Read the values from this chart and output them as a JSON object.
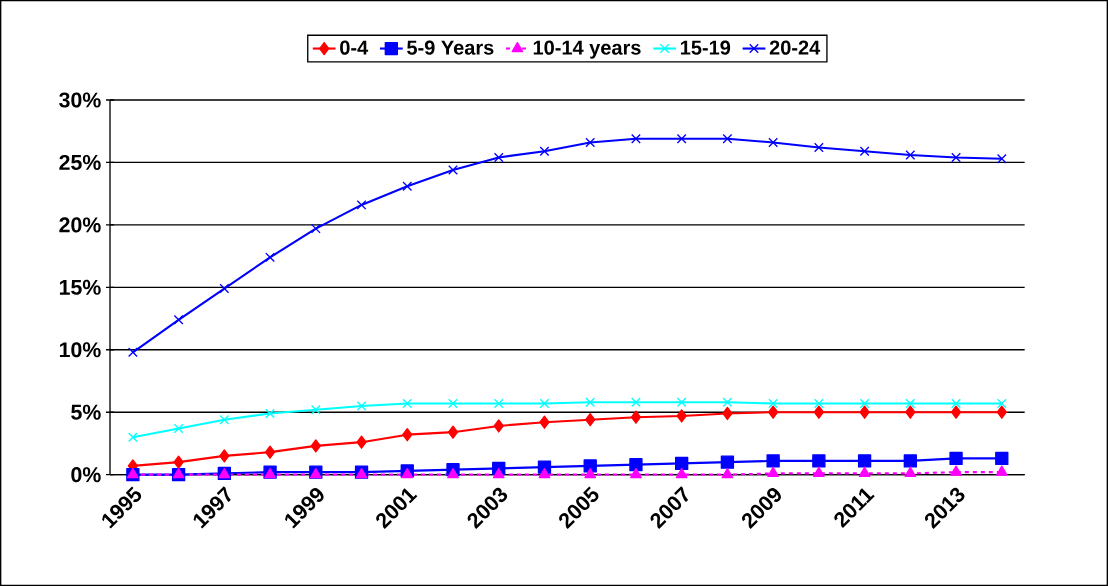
{
  "chart_data": {
    "type": "line",
    "categories": [
      "1995",
      null,
      "1997",
      null,
      "1999",
      null,
      "2001",
      null,
      "2003",
      null,
      "2005",
      null,
      "2007",
      null,
      "2009",
      null,
      "2011",
      null,
      "2013",
      null
    ],
    "ylim": [
      0,
      30
    ],
    "yticks": [
      {
        "value": 0,
        "label": "0%"
      },
      {
        "value": 5,
        "label": "5%"
      },
      {
        "value": 10,
        "label": "10%"
      },
      {
        "value": 15,
        "label": "15%"
      },
      {
        "value": 20,
        "label": "20%"
      },
      {
        "value": 25,
        "label": "25%"
      },
      {
        "value": 30,
        "label": "30%"
      }
    ],
    "grid": "y",
    "legend": "top",
    "series": [
      {
        "name": "0-4",
        "color": "#ff0000",
        "marker": "diamond",
        "line_style": "solid",
        "values": [
          0.7,
          1.0,
          1.5,
          1.8,
          2.3,
          2.6,
          3.2,
          3.4,
          3.9,
          4.2,
          4.4,
          4.6,
          4.7,
          4.9,
          5.0,
          5.0,
          5.0,
          5.0,
          5.0,
          5.0
        ]
      },
      {
        "name": "5-9 Years",
        "color": "#0000ff",
        "marker": "square",
        "line_style": "solid",
        "values": [
          0,
          0,
          0.1,
          0.2,
          0.2,
          0.2,
          0.3,
          0.4,
          0.5,
          0.6,
          0.7,
          0.8,
          0.9,
          1.0,
          1.1,
          1.1,
          1.1,
          1.1,
          1.3,
          1.3
        ]
      },
      {
        "name": "10-14 years",
        "color": "#ff00ff",
        "marker": "triangle",
        "line_style": "dashed",
        "values": [
          0,
          0,
          0,
          0,
          0,
          0,
          0,
          0,
          0,
          0,
          0,
          0,
          0,
          0,
          0.1,
          0.1,
          0.1,
          0.1,
          0.2,
          0.2
        ]
      },
      {
        "name": "15-19",
        "color": "#00ffff",
        "marker": "cross",
        "line_style": "solid",
        "values": [
          3.0,
          3.7,
          4.4,
          4.9,
          5.2,
          5.5,
          5.7,
          5.7,
          5.7,
          5.7,
          5.8,
          5.8,
          5.8,
          5.8,
          5.7,
          5.7,
          5.7,
          5.7,
          5.7,
          5.7
        ]
      },
      {
        "name": "20-24",
        "color": "#0000ff",
        "marker": "cross",
        "line_style": "solid",
        "values": [
          9.8,
          12.4,
          14.9,
          17.4,
          19.7,
          21.6,
          23.1,
          24.4,
          25.4,
          25.9,
          26.6,
          26.9,
          26.9,
          26.9,
          26.6,
          26.2,
          25.9,
          25.6,
          25.4,
          25.3
        ]
      }
    ]
  }
}
